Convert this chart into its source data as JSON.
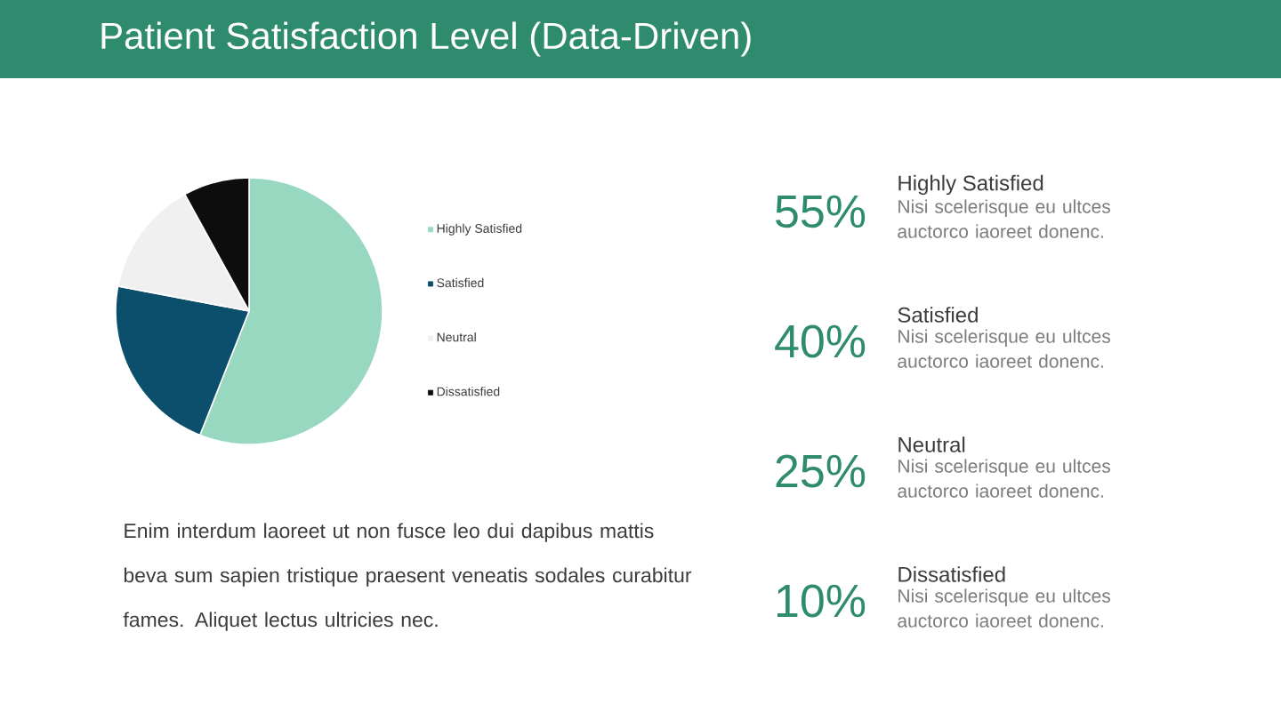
{
  "chart_data": {
    "type": "pie",
    "title": "Patient Satisfaction Level (Data-Driven)",
    "categories": [
      "Highly Satisfied",
      "Satisfied",
      "Neutral",
      "Dissatisfied"
    ],
    "values": [
      56,
      22,
      14,
      8
    ],
    "colors": [
      "#98d8c0",
      "#0b4f6c",
      "#f0f0f0",
      "#0d0d0d"
    ],
    "legend": "right",
    "annotations": [
      "55%",
      "Highly Satisfied",
      "Nisi scelerisque eu ultces auctorco iaoreet donenc.",
      "40%",
      "Satisfied",
      "Nisi scelerisque eu ultces auctorco iaoreet donenc.",
      "25%",
      "Neutral",
      "Nisi scelerisque eu ultces auctorco iaoreet donenc.",
      "10%",
      "Dissatisfied",
      "Nisi scelerisque eu ultces auctorco iaoreet donenc.",
      "Enim interdum laoreet ut non fusce leo dui dapibus mattis beva sum sapien tristique praesent veneatis sodales curabitur fames. Aliquet lectus ultricies nec."
    ]
  }
}
